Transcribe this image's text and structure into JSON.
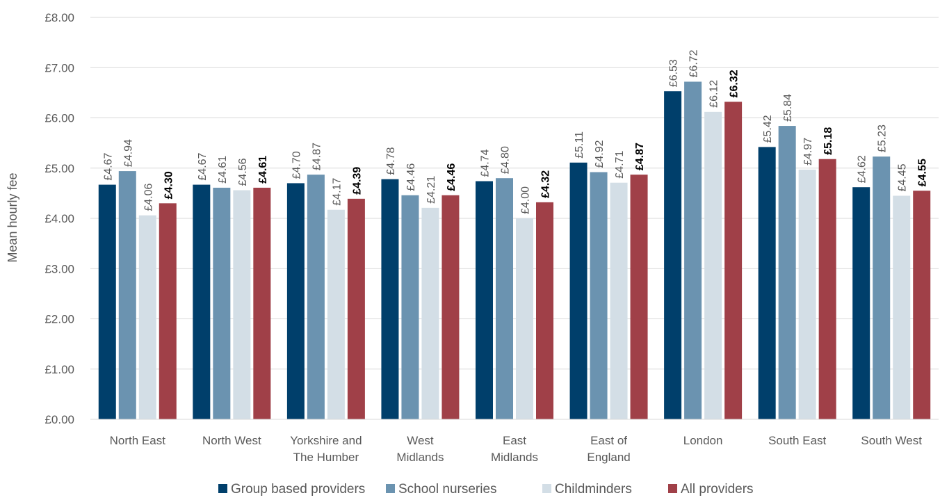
{
  "chart_data": {
    "type": "bar",
    "ylabel": "Mean hourly fee",
    "xlabel": "",
    "title": "",
    "ylim": [
      0,
      8
    ],
    "yticks": [
      0,
      1,
      2,
      3,
      4,
      5,
      6,
      7,
      8
    ],
    "ytick_labels": [
      "£0.00",
      "£1.00",
      "£2.00",
      "£3.00",
      "£4.00",
      "£5.00",
      "£6.00",
      "£7.00",
      "£8.00"
    ],
    "categories": [
      [
        "North East"
      ],
      [
        "North West"
      ],
      [
        "Yorkshire and",
        "The Humber"
      ],
      [
        "West",
        "Midlands"
      ],
      [
        "East",
        "Midlands"
      ],
      [
        "East of",
        "England"
      ],
      [
        "London"
      ],
      [
        "South East"
      ],
      [
        "South West"
      ]
    ],
    "series": [
      {
        "name": "Group based providers",
        "color": "#003f6b",
        "values": [
          4.67,
          4.67,
          4.7,
          4.78,
          4.74,
          5.11,
          6.53,
          5.42,
          4.62
        ]
      },
      {
        "name": "School nurseries",
        "color": "#6b93b0",
        "values": [
          4.94,
          4.61,
          4.87,
          4.46,
          4.8,
          4.92,
          6.72,
          5.84,
          5.23
        ]
      },
      {
        "name": "Childminders",
        "color": "#d3dee6",
        "values": [
          4.06,
          4.56,
          4.17,
          4.21,
          4.0,
          4.71,
          6.12,
          4.97,
          4.45
        ]
      },
      {
        "name": "All providers",
        "color": "#a04048",
        "values": [
          4.3,
          4.61,
          4.39,
          4.46,
          4.32,
          4.87,
          6.32,
          5.18,
          4.55
        ]
      }
    ],
    "grid": true,
    "legend_position": "bottom",
    "value_prefix": "£"
  }
}
